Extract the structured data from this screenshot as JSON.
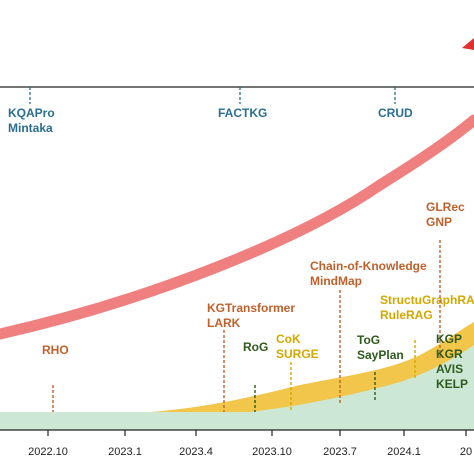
{
  "timeline": {
    "ticks": [
      "2022.10",
      "2023.1",
      "2023.4",
      "2023.10",
      "2023.7",
      "2024.1",
      "20"
    ]
  },
  "benchmarks": {
    "color": "#2a6f8f",
    "items": [
      {
        "id": "kqapro",
        "lines": [
          "KQAPro",
          "Mintaka"
        ]
      },
      {
        "id": "factkg",
        "lines": [
          "FACTKG"
        ]
      },
      {
        "id": "crud",
        "lines": [
          "CRUD"
        ]
      }
    ]
  },
  "methods": {
    "colors": {
      "orange": "#c0612b",
      "yellow": "#d4a800",
      "green": "#2e5a1c"
    },
    "items": [
      {
        "id": "rho",
        "color": "orange",
        "lines": [
          "RHO"
        ]
      },
      {
        "id": "kgtransformer",
        "color": "orange",
        "lines": [
          "KGTransformer",
          "LARK"
        ]
      },
      {
        "id": "cok",
        "color": "yellow",
        "lines": [
          "CoK",
          "SURGE"
        ]
      },
      {
        "id": "rog",
        "color": "green",
        "lines": [
          "RoG"
        ]
      },
      {
        "id": "chain",
        "color": "orange",
        "lines": [
          "Chain-of-Knowledge",
          "MindMap"
        ]
      },
      {
        "id": "tog",
        "color": "green",
        "lines": [
          "ToG",
          "SayPlan"
        ]
      },
      {
        "id": "structgraph",
        "color": "yellow",
        "lines": [
          "StructuGraphRA",
          "RuleRAG"
        ]
      },
      {
        "id": "glrec",
        "color": "orange",
        "lines": [
          "GLRec",
          "GNP"
        ]
      },
      {
        "id": "kgp",
        "color": "green",
        "lines": [
          "KGP",
          "KGR",
          "AVIS",
          "KELP"
        ]
      }
    ]
  },
  "palette": {
    "curve": "#f08080",
    "arrow": "#e03030",
    "area_green": "#cce8d4",
    "area_yellow": "#f2c64a",
    "axis": "#222222"
  }
}
